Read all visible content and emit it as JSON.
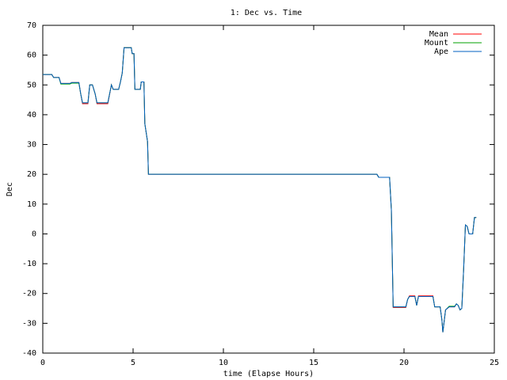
{
  "chart_data": {
    "type": "line",
    "title": "1: Dec vs. Time",
    "x_label": "time (Elapse Hours)",
    "y_label": "Dec",
    "x": [
      0,
      0.5,
      0.6,
      0.9,
      1.0,
      1.5,
      1.6,
      2.0,
      2.1,
      2.2,
      2.5,
      2.6,
      2.75,
      2.9,
      3.0,
      3.6,
      3.8,
      3.9,
      4.2,
      4.3,
      4.4,
      4.5,
      4.9,
      4.95,
      5.05,
      5.1,
      5.4,
      5.45,
      5.6,
      5.65,
      5.8,
      5.85,
      18.5,
      18.6,
      19.2,
      19.3,
      19.4,
      20.1,
      20.2,
      20.3,
      20.6,
      20.7,
      20.8,
      21.6,
      21.7,
      22.0,
      22.1,
      22.15,
      22.3,
      22.5,
      22.8,
      22.9,
      23.0,
      23.1,
      23.2,
      23.3,
      23.4,
      23.5,
      23.6,
      23.8,
      23.9,
      24.0
    ],
    "series": [
      {
        "name": "Mean",
        "color": "#ff0000",
        "values": [
          53.5,
          53.5,
          52.5,
          52.5,
          50.5,
          50.5,
          50.8,
          50.8,
          47,
          43.7,
          43.7,
          50,
          50,
          47,
          43.7,
          43.7,
          50,
          48.5,
          48.5,
          51,
          54,
          62.5,
          62.5,
          60.5,
          60.5,
          48.5,
          48.5,
          51,
          51,
          37,
          31,
          20,
          20,
          19,
          19,
          8,
          -24.7,
          -24.7,
          -22,
          -20.8,
          -20.8,
          -24,
          -20.8,
          -20.8,
          -24.5,
          -24.5,
          -29,
          -33,
          -25.5,
          -24.5,
          -24.5,
          -23.5,
          -24,
          -25.5,
          -25,
          -12,
          3,
          2.5,
          0,
          0,
          5.5,
          5.5
        ]
      },
      {
        "name": "Mount",
        "color": "#00a000",
        "values": [
          53.5,
          53.5,
          52.5,
          52.5,
          50.3,
          50.3,
          50.6,
          50.6,
          47,
          44,
          44,
          50,
          50,
          47,
          44,
          44,
          50,
          48.5,
          48.5,
          51,
          54,
          62.5,
          62.5,
          60.5,
          60.5,
          48.5,
          48.5,
          51,
          51,
          37,
          31,
          20,
          20,
          19,
          19,
          8,
          -24.5,
          -24.5,
          -22,
          -21,
          -21,
          -24,
          -21,
          -21,
          -24.5,
          -24.5,
          -29,
          -33,
          -25.5,
          -24.3,
          -24.3,
          -23.5,
          -24,
          -25.5,
          -25,
          -12,
          3,
          2.5,
          0,
          0,
          5.5,
          5.5
        ]
      },
      {
        "name": "Ape",
        "color": "#0060c0",
        "values": [
          53.5,
          53.5,
          52.5,
          52.5,
          50.5,
          50.5,
          50.8,
          50.8,
          47,
          44,
          44,
          50,
          50,
          47,
          44,
          44,
          50,
          48.5,
          48.5,
          51,
          54,
          62.5,
          62.5,
          60.5,
          60.5,
          48.5,
          48.5,
          51,
          51,
          37,
          31,
          20,
          20,
          19,
          19,
          8,
          -24.5,
          -24.5,
          -22,
          -21,
          -21,
          -24,
          -21,
          -21,
          -24.5,
          -24.5,
          -29,
          -33,
          -25.5,
          -24.5,
          -24.5,
          -23.5,
          -24,
          -25.5,
          -25,
          -12,
          3,
          2.5,
          0,
          0,
          5.5,
          5.5
        ]
      }
    ],
    "xlim": [
      0,
      25
    ],
    "xticks": [
      0,
      5,
      10,
      15,
      20,
      25
    ],
    "ylim": [
      -40,
      70
    ],
    "yticks": [
      -40,
      -30,
      -20,
      -10,
      0,
      10,
      20,
      30,
      40,
      50,
      60,
      70
    ]
  }
}
